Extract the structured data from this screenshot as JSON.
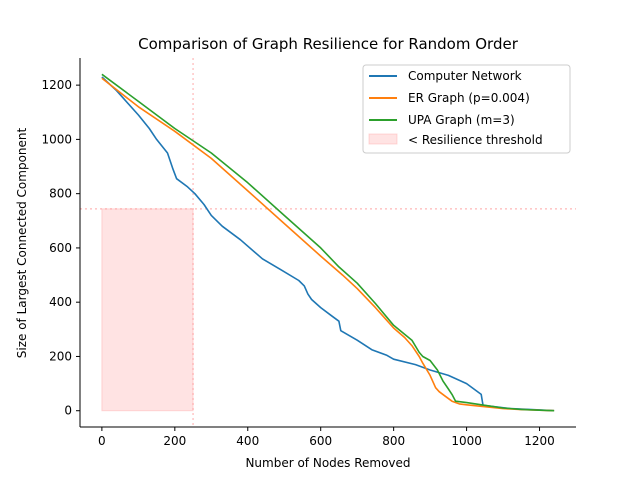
{
  "chart_data": {
    "type": "line",
    "title": "Comparison of Graph Resilience for Random Order",
    "xlabel": "Number of Nodes Removed",
    "ylabel": "Size of Largest Connected Component",
    "xlim": [
      -60,
      1300
    ],
    "ylim": [
      -60,
      1300
    ],
    "xticks": [
      0,
      200,
      400,
      600,
      800,
      1000,
      1200
    ],
    "yticks": [
      0,
      200,
      400,
      600,
      800,
      1000,
      1200
    ],
    "grid": false,
    "legend_position": "upper right",
    "series": [
      {
        "name": "Computer Network",
        "color": "#1f77b4",
        "x": [
          0,
          40,
          60,
          100,
          130,
          150,
          180,
          195,
          205,
          235,
          255,
          280,
          300,
          330,
          380,
          440,
          490,
          540,
          555,
          565,
          575,
          600,
          630,
          650,
          655,
          700,
          740,
          780,
          800,
          860,
          900,
          950,
          1000,
          1040,
          1045,
          1120,
          1200,
          1240
        ],
        "y": [
          1230,
          1180,
          1150,
          1090,
          1040,
          1000,
          950,
          890,
          855,
          825,
          800,
          760,
          720,
          680,
          630,
          560,
          520,
          480,
          460,
          430,
          410,
          380,
          350,
          330,
          295,
          260,
          225,
          205,
          190,
          170,
          150,
          130,
          100,
          60,
          20,
          8,
          3,
          0
        ]
      },
      {
        "name": "ER Graph (p=0.004)",
        "color": "#ff7f0e",
        "x": [
          0,
          100,
          200,
          300,
          400,
          500,
          600,
          660,
          700,
          750,
          800,
          830,
          850,
          870,
          880,
          900,
          915,
          925,
          940,
          960,
          980,
          1000,
          1050,
          1100,
          1150,
          1200,
          1240
        ],
        "y": [
          1225,
          1120,
          1030,
          930,
          810,
          690,
          570,
          500,
          450,
          380,
          305,
          270,
          240,
          200,
          175,
          130,
          85,
          70,
          55,
          35,
          25,
          22,
          15,
          8,
          4,
          2,
          0
        ]
      },
      {
        "name": "UPA Graph (m=3)",
        "color": "#2ca02c",
        "x": [
          0,
          100,
          200,
          300,
          400,
          500,
          600,
          650,
          700,
          750,
          800,
          850,
          870,
          880,
          900,
          920,
          935,
          950,
          960,
          970,
          1000,
          1050,
          1100,
          1150,
          1200,
          1240
        ],
        "y": [
          1240,
          1140,
          1040,
          950,
          840,
          720,
          600,
          530,
          470,
          395,
          315,
          260,
          215,
          200,
          185,
          150,
          110,
          80,
          60,
          35,
          30,
          20,
          10,
          5,
          2,
          0
        ]
      }
    ],
    "threshold": {
      "label": "< Resilience threshold",
      "color": "#ff9999",
      "x_max": 250,
      "y_max": 744
    }
  }
}
